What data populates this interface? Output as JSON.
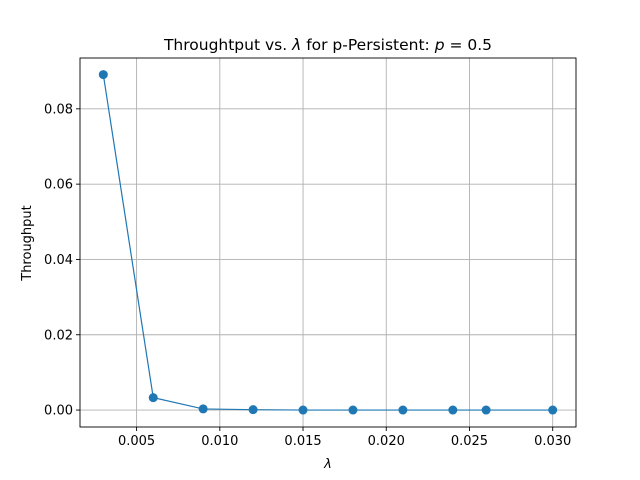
{
  "chart_data": {
    "type": "line",
    "title": "Throughtput vs. λ for p-Persistent: p = 0.5",
    "title_parts": {
      "prefix": "Throughtput vs. ",
      "lambda_symbol": "λ",
      "middle": " for p-Persistent: ",
      "p_symbol": "p",
      "suffix": " = 0.5"
    },
    "xlabel": "λ",
    "ylabel": "Throughput",
    "xlim": [
      0.0016,
      0.0314
    ],
    "ylim": [
      -0.0045,
      0.0935
    ],
    "xticks": [
      0.005,
      0.01,
      0.015,
      0.02,
      0.025,
      0.03
    ],
    "xtick_labels": [
      "0.005",
      "0.010",
      "0.015",
      "0.020",
      "0.025",
      "0.030"
    ],
    "yticks": [
      0.0,
      0.02,
      0.04,
      0.06,
      0.08
    ],
    "ytick_labels": [
      "0.00",
      "0.02",
      "0.04",
      "0.06",
      "0.08"
    ],
    "grid": true,
    "series": [
      {
        "x": [
          0.003,
          0.006,
          0.009,
          0.012,
          0.015,
          0.018,
          0.021,
          0.024,
          0.026,
          0.03
        ],
        "y": [
          0.0891,
          0.0033,
          0.0003,
          0.0001,
          0.0,
          0.0,
          0.0,
          0.0,
          0.0,
          0.0
        ],
        "color": "#1f77b4",
        "marker": "circle"
      }
    ]
  }
}
